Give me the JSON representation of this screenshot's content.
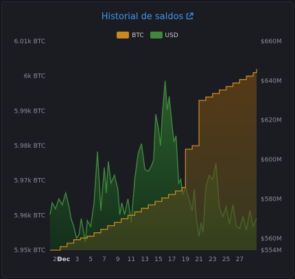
{
  "title": "Historial de saldos",
  "legend": [
    {
      "label": "BTC",
      "color": "#c88a1c"
    },
    {
      "label": "USD",
      "color": "#3d8a3a"
    }
  ],
  "chart_data": {
    "type": "area",
    "title": "Historial de saldos",
    "x_ticks": [
      "29",
      "Dec",
      "3",
      "5",
      "7",
      "9",
      "11",
      "13",
      "15",
      "17",
      "19",
      "21",
      "23",
      "25",
      "27"
    ],
    "x_range": [
      "Nov 28",
      "Dec 29"
    ],
    "left_axis": {
      "ticks": [
        "5.95k BTC",
        "5.96k BTC",
        "5.97k BTC",
        "5.98k BTC",
        "5.99k BTC",
        "6k BTC",
        "6.01k BTC"
      ],
      "range": [
        5950,
        6010
      ]
    },
    "right_axis": {
      "ticks": [
        "$554M",
        "$560M",
        "$580M",
        "$600M",
        "$620M",
        "$640M",
        "$660M"
      ],
      "range": [
        554,
        660
      ]
    },
    "series": [
      {
        "name": "BTC",
        "axis": "left",
        "color": "#c88a1c",
        "x": [
          0,
          0.5,
          1.5,
          2.5,
          3.5,
          4.5,
          5.5,
          6.5,
          7.5,
          8.5,
          9.5,
          10.5,
          11.5,
          12.5,
          13.5,
          14.5,
          15.5,
          16.5,
          17.5,
          18.5,
          19.5,
          20,
          21,
          22,
          23,
          24,
          25,
          26,
          27,
          28,
          29,
          30,
          30.5
        ],
        "values": [
          5950,
          5950,
          5951,
          5952,
          5953,
          5953.5,
          5954,
          5955,
          5956,
          5957,
          5958,
          5959,
          5960,
          5961,
          5962,
          5963,
          5964,
          5965,
          5966,
          5967,
          5968,
          5979,
          5980,
          5993,
          5994,
          5995,
          5996,
          5997,
          5998,
          5999,
          6000,
          6001,
          6002
        ]
      },
      {
        "name": "USD",
        "axis": "right",
        "color": "#3d8a3a",
        "x": [
          0,
          0.3,
          0.8,
          1.3,
          1.8,
          2.3,
          2.8,
          3.1,
          3.5,
          3.9,
          4.3,
          4.6,
          4.9,
          5.2,
          5.5,
          6.0,
          6.5,
          7.0,
          7.5,
          8.0,
          8.3,
          8.6,
          9.0,
          9.5,
          10.0,
          10.3,
          10.6,
          11.0,
          11.5,
          12.0,
          12.5,
          13.0,
          13.5,
          14.0,
          14.5,
          15.0,
          15.3,
          15.6,
          16.0,
          16.3,
          16.6,
          17.0,
          17.3,
          17.6,
          18.0,
          18.3,
          18.6,
          19.0,
          19.3,
          19.6,
          20.0,
          20.5,
          21.0,
          21.3,
          21.6,
          22.0,
          22.3,
          22.6,
          23.0,
          23.5,
          24.0,
          24.5,
          25.0,
          25.5,
          26.0,
          26.5,
          27.0,
          27.5,
          28.0,
          28.5,
          29.0,
          29.5,
          30.0,
          30.5
        ],
        "values": [
          572,
          578,
          575,
          580,
          577,
          583,
          576,
          570,
          566,
          560,
          562,
          570,
          564,
          558,
          569,
          566,
          578,
          604,
          574,
          596,
          583,
          599,
          588,
          592,
          585,
          572,
          578,
          572,
          580,
          568,
          590,
          603,
          608,
          595,
          594,
          597,
          600,
          623,
          616,
          607,
          624,
          640,
          625,
          632,
          618,
          609,
          612,
          588,
          590,
          582,
          586,
          580,
          574,
          585,
          570,
          561,
          568,
          563,
          586,
          592,
          590,
          598,
          576,
          571,
          576,
          567,
          577,
          566,
          565,
          571,
          564,
          574,
          566,
          570
        ]
      }
    ],
    "grid": false,
    "legend_position": "top"
  }
}
